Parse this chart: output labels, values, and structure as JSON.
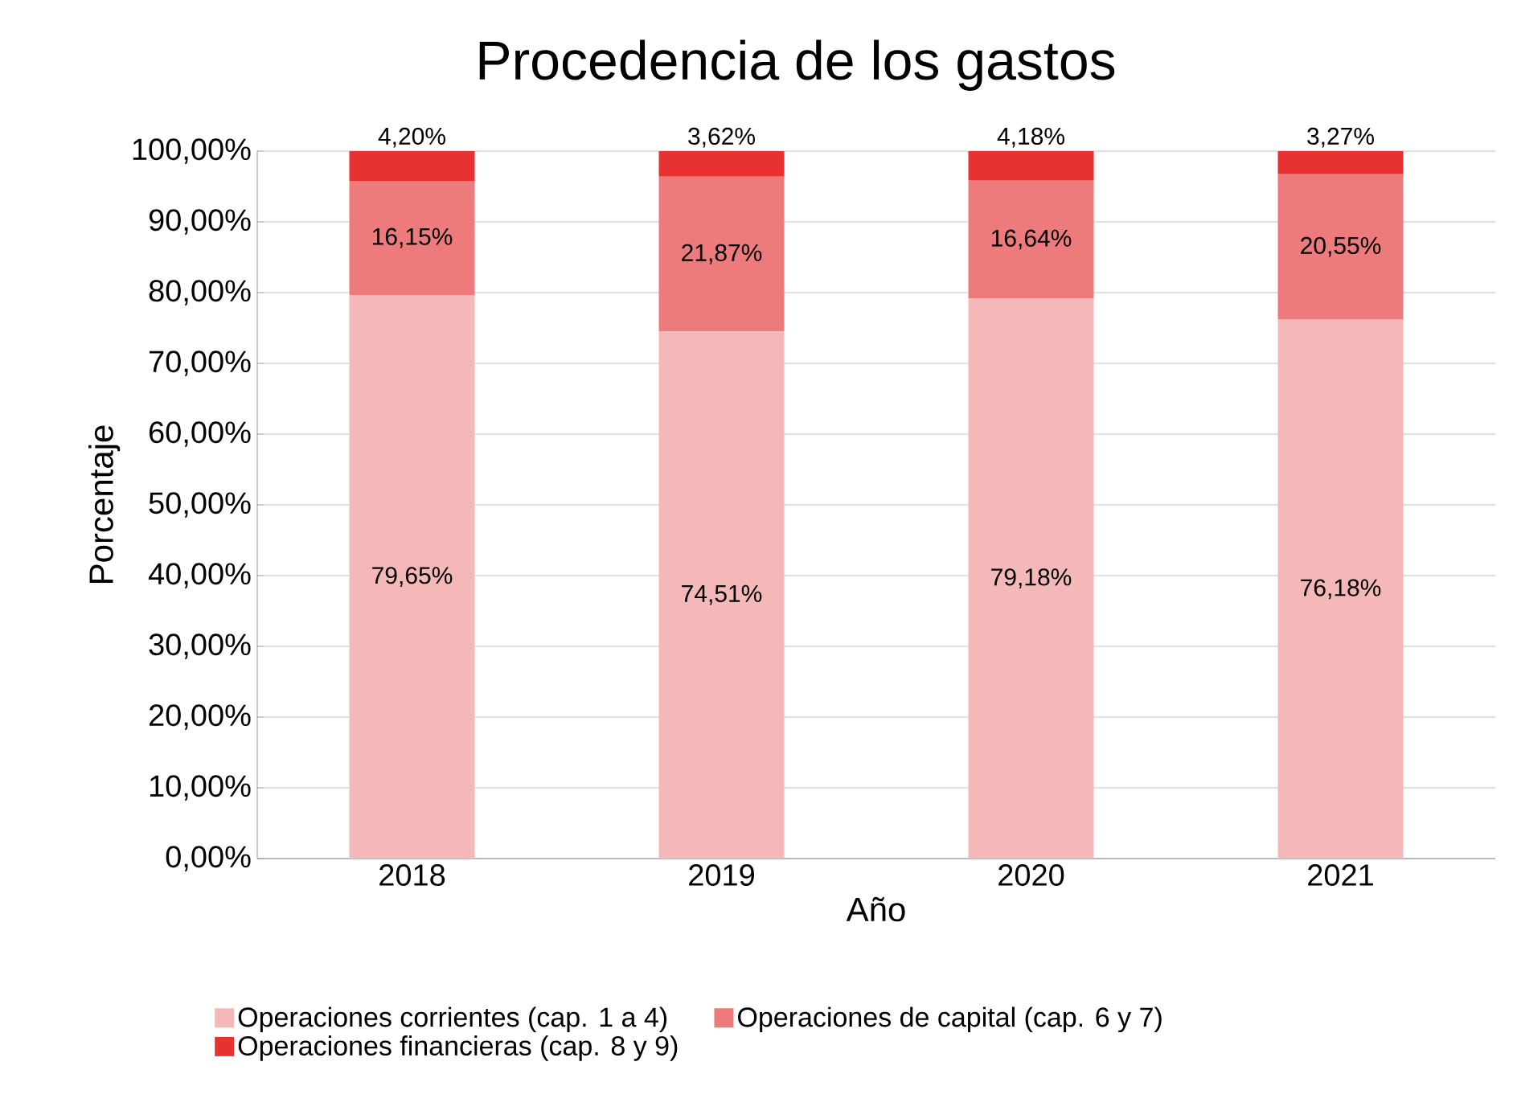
{
  "chart_data": {
    "type": "bar",
    "title": "Procedencia de los gastos",
    "xlabel": "Año",
    "ylabel": "Porcentaje",
    "categories": [
      "2018",
      "2019",
      "2020",
      "2021"
    ],
    "stacked": true,
    "grid": "y",
    "legend": "bottom",
    "ylim": [
      0,
      100
    ],
    "yticks": [
      {
        "value": 0,
        "label": "0,00%"
      },
      {
        "value": 10,
        "label": "10,00%"
      },
      {
        "value": 20,
        "label": "20,00%"
      },
      {
        "value": 30,
        "label": "30,00%"
      },
      {
        "value": 40,
        "label": "40,00%"
      },
      {
        "value": 50,
        "label": "50,00%"
      },
      {
        "value": 60,
        "label": "60,00%"
      },
      {
        "value": 70,
        "label": "70,00%"
      },
      {
        "value": 80,
        "label": "80,00%"
      },
      {
        "value": 90,
        "label": "90,00%"
      },
      {
        "value": 100,
        "label": "100,00%"
      }
    ],
    "series": [
      {
        "name": "Operaciones corrientes (cap. 1 a 4)",
        "color": "#f4b8b9",
        "values": [
          79.65,
          74.51,
          79.18,
          76.18
        ],
        "value_labels": [
          "79,65%",
          "74,51%",
          "79,18%",
          "76,18%"
        ]
      },
      {
        "name": "Operaciones de capital (cap. 6 y 7)",
        "color": "#ee7b7c",
        "values": [
          16.15,
          21.87,
          16.64,
          20.55
        ],
        "value_labels": [
          "16,15%",
          "21,87%",
          "16,64%",
          "20,55%"
        ]
      },
      {
        "name": "Operaciones financieras (cap. 8 y 9)",
        "color": "#e83232",
        "values": [
          4.2,
          3.62,
          4.18,
          3.27
        ],
        "value_labels": [
          "4,20%",
          "3,62%",
          "4,18%",
          "3,27%"
        ]
      }
    ]
  }
}
